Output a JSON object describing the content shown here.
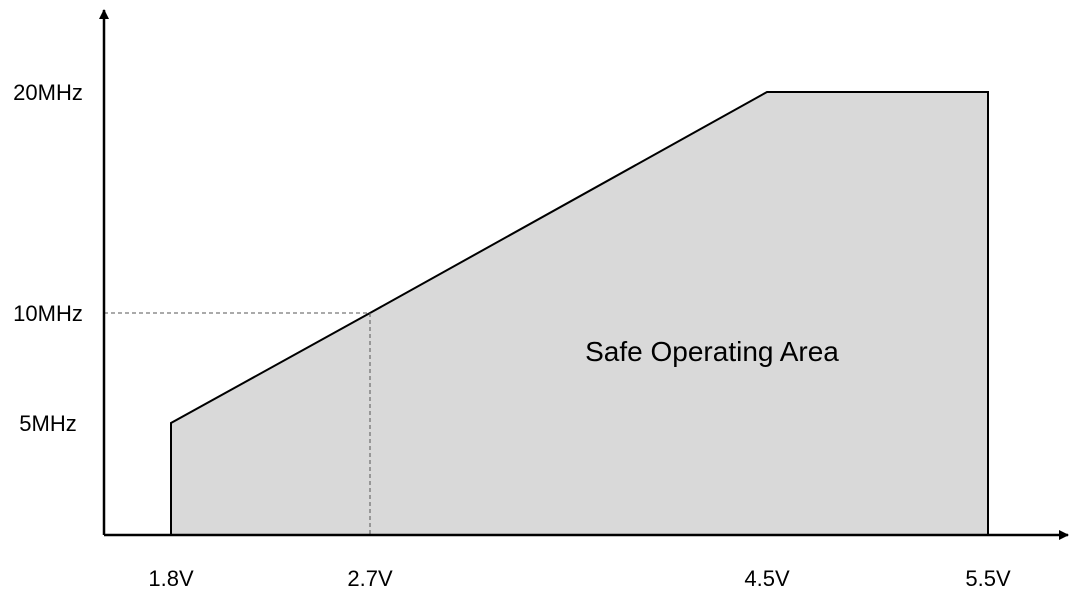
{
  "chart_data": {
    "type": "area",
    "title": "",
    "xlabel": "",
    "ylabel": "",
    "x_unit": "V",
    "y_unit": "MHz",
    "x_ticks": [
      "1.8V",
      "2.7V",
      "4.5V",
      "5.5V"
    ],
    "y_ticks": [
      "5MHz",
      "10MHz",
      "20MHz"
    ],
    "series": [
      {
        "points": [
          {
            "x": 1.8,
            "y": 0
          },
          {
            "x": 1.8,
            "y": 5
          },
          {
            "x": 2.7,
            "y": 10
          },
          {
            "x": 4.5,
            "y": 20
          },
          {
            "x": 5.5,
            "y": 20
          },
          {
            "x": 5.5,
            "y": 0
          }
        ]
      }
    ],
    "reference_point": {
      "x": 2.7,
      "y": 10
    },
    "annotation": "Safe Operating Area",
    "fill_color": "#d9d9d9",
    "line_color": "#000000",
    "grid": false
  }
}
